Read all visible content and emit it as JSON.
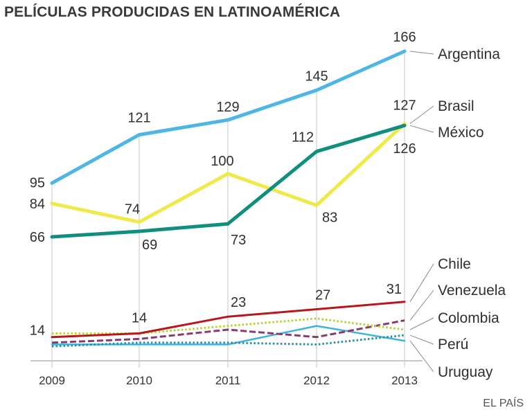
{
  "title": "PELÍCULAS PRODUCIDAS EN LATINOAMÉRICA",
  "source": "EL PAÍS",
  "chart_data": {
    "type": "line",
    "title": "PELÍCULAS PRODUCIDAS EN LATINOAMÉRICA",
    "xlabel": "",
    "ylabel": "",
    "x": [
      "2009",
      "2010",
      "2011",
      "2012",
      "2013"
    ],
    "ylim": [
      0,
      166
    ],
    "grid": "vertical drop lines at each year",
    "legend": "direct labels at right",
    "series": [
      {
        "name": "Argentina",
        "color": "#4db6e2",
        "style": "solid-thick",
        "values": [
          95,
          121,
          129,
          145,
          166
        ],
        "labels": [
          "95",
          "121",
          "129",
          "145",
          "166"
        ]
      },
      {
        "name": "Brasil",
        "color": "#f0e94a",
        "style": "solid-thick",
        "values": [
          84,
          74,
          100,
          83,
          127
        ],
        "labels": [
          "84",
          "74",
          "100",
          "83",
          "127"
        ]
      },
      {
        "name": "México",
        "color": "#108f7f",
        "style": "solid-thick",
        "values": [
          66,
          69,
          73,
          112,
          126
        ],
        "labels": [
          "66",
          "69",
          "73",
          "112",
          "126"
        ]
      },
      {
        "name": "Chile",
        "color": "#b8161a",
        "style": "solid",
        "values": [
          12,
          14,
          23,
          27,
          31
        ],
        "labels": [
          "",
          "14",
          "23",
          "27",
          "31"
        ]
      },
      {
        "name": "Venezuela",
        "color": "#8c3a6c",
        "style": "dashed",
        "values": [
          9,
          11,
          16,
          12,
          21
        ],
        "labels": [
          "",
          "",
          "",
          "",
          ""
        ]
      },
      {
        "name": "Colombia",
        "color": "#b5d22a",
        "style": "dotted",
        "values": [
          14,
          14,
          18,
          22,
          16
        ],
        "labels": [
          "14",
          "",
          "",
          "",
          ""
        ]
      },
      {
        "name": "Perú",
        "color": "#2a8f96",
        "style": "dotted",
        "values": [
          7,
          9,
          9,
          8,
          13
        ],
        "labels": [
          "",
          "",
          "",
          "",
          ""
        ]
      },
      {
        "name": "Uruguay",
        "color": "#3fb2e0",
        "style": "solid-thin",
        "values": [
          8,
          8,
          8,
          18,
          10
        ],
        "labels": [
          "",
          "",
          "",
          "",
          ""
        ]
      }
    ]
  }
}
